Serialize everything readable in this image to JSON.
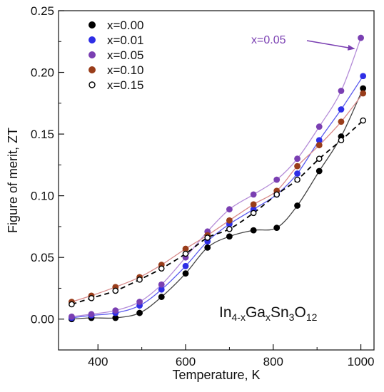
{
  "chart_data": {
    "type": "scatter",
    "xlabel": "Temperature, K",
    "ylabel": "Figure of merit, ZT",
    "xlim": [
      310,
      1030
    ],
    "ylim": [
      -0.025,
      0.25
    ],
    "x_ticks": [
      400,
      600,
      800,
      1000
    ],
    "y_ticks": [
      0.0,
      0.05,
      0.1,
      0.15,
      0.2,
      0.25
    ],
    "x_tick_labels": [
      "400",
      "600",
      "800",
      "1000"
    ],
    "y_tick_labels": [
      "0.00",
      "0.05",
      "0.10",
      "0.15",
      "0.20",
      "0.25"
    ],
    "grid": false,
    "legend_position": "top-left",
    "annotation": {
      "text": "x=0.05",
      "points_to": [
        985,
        0.218
      ],
      "color": "#7a3fb2"
    },
    "formula": {
      "base1": "In",
      "sub1": "4-x",
      "base2": "Ga",
      "sub2": "x",
      "base3": "Sn",
      "sub3": "3",
      "base4": "O",
      "sub4": "12"
    },
    "series": [
      {
        "name": "x=0.00",
        "marker": "filled",
        "color": "#000000",
        "line_color": "#444444",
        "line_style": "solid",
        "x": [
          340,
          385,
          440,
          495,
          545,
          600,
          650,
          700,
          755,
          808,
          855,
          905,
          955,
          1005
        ],
        "y": [
          0.0,
          0.001,
          0.001,
          0.005,
          0.018,
          0.037,
          0.058,
          0.067,
          0.072,
          0.074,
          0.092,
          0.12,
          0.148,
          0.187
        ]
      },
      {
        "name": "x=0.01",
        "marker": "filled",
        "color": "#2e2ee6",
        "line_color": "#5a5aee",
        "line_style": "solid",
        "x": [
          340,
          385,
          440,
          495,
          545,
          600,
          650,
          700,
          755,
          808,
          855,
          905,
          955,
          1005
        ],
        "y": [
          0.001,
          0.003,
          0.005,
          0.011,
          0.024,
          0.043,
          0.063,
          0.077,
          0.089,
          0.101,
          0.118,
          0.145,
          0.17,
          0.197
        ]
      },
      {
        "name": "x=0.05",
        "marker": "filled",
        "color": "#7a3fb2",
        "line_color": "#b48cd8",
        "line_style": "solid",
        "x": [
          340,
          385,
          440,
          495,
          545,
          600,
          650,
          700,
          755,
          808,
          855,
          905,
          955,
          1000
        ],
        "y": [
          0.002,
          0.004,
          0.007,
          0.014,
          0.028,
          0.05,
          0.071,
          0.089,
          0.101,
          0.113,
          0.13,
          0.156,
          0.185,
          0.228
        ]
      },
      {
        "name": "x=0.10",
        "marker": "filled",
        "color": "#993d1a",
        "line_color": "#d88a8a",
        "line_style": "solid",
        "x": [
          340,
          385,
          440,
          495,
          545,
          600,
          650,
          700,
          755,
          808,
          855,
          905,
          955,
          1005
        ],
        "y": [
          0.014,
          0.019,
          0.026,
          0.034,
          0.044,
          0.057,
          0.068,
          0.08,
          0.093,
          0.104,
          0.124,
          0.141,
          0.16,
          0.183
        ]
      },
      {
        "name": "x=0.15",
        "marker": "open",
        "color": "#000000",
        "line_color": "#000000",
        "line_style": "dashed",
        "x": [
          340,
          385,
          440,
          495,
          545,
          600,
          650,
          700,
          755,
          808,
          855,
          905,
          955,
          1005
        ],
        "y": [
          0.012,
          0.017,
          0.023,
          0.032,
          0.041,
          0.053,
          0.066,
          0.073,
          0.086,
          0.101,
          0.113,
          0.13,
          0.145,
          0.161
        ]
      }
    ]
  }
}
